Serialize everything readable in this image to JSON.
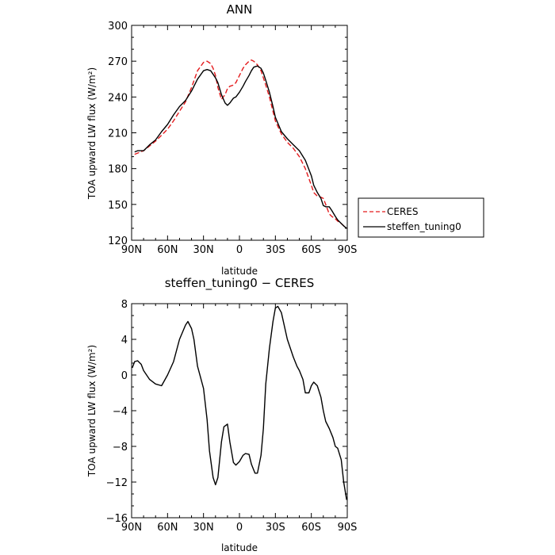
{
  "chart_data": [
    {
      "type": "line",
      "title": "ANN",
      "xlabel": "latitude",
      "ylabel": "TOA upward LW flux (W/m²)",
      "xticks": [
        "90N",
        "60N",
        "30N",
        "0",
        "30S",
        "60S",
        "90S"
      ],
      "xlim": [
        -90,
        90
      ],
      "ylim": [
        120,
        300
      ],
      "yticks": [
        120,
        150,
        180,
        210,
        240,
        270,
        300
      ],
      "legend": "right",
      "series": [
        {
          "name": "CERES",
          "color": "#e41a1c",
          "dash": "dashed",
          "x": [
            -87.5,
            -85,
            -80,
            -75,
            -70,
            -65,
            -60,
            -55,
            -50,
            -45,
            -40,
            -35,
            -30,
            -27,
            -24,
            -22,
            -20,
            -18,
            -15,
            -12,
            -10,
            -8,
            -5,
            -3,
            0,
            3,
            5,
            8,
            10,
            12,
            15,
            18,
            20,
            22,
            25,
            28,
            30,
            35,
            40,
            45,
            50,
            55,
            60,
            62,
            65,
            68,
            70,
            72,
            75,
            77,
            80,
            82,
            85,
            87,
            89.5
          ],
          "y": [
            192,
            193,
            195,
            199,
            203,
            208,
            213,
            220,
            228,
            236,
            248,
            262,
            269,
            270,
            268,
            264,
            258,
            248,
            238,
            242,
            247,
            249,
            250,
            252,
            258,
            264,
            267,
            270,
            271,
            270,
            267,
            262,
            256,
            250,
            240,
            228,
            220,
            209,
            202,
            197,
            190,
            180,
            166,
            160,
            157,
            156,
            155,
            150,
            142,
            140,
            138,
            136,
            134,
            132,
            130
          ]
        },
        {
          "name": "steffen_tuning0",
          "color": "#000000",
          "dash": "solid",
          "x": [
            -87.5,
            -85,
            -80,
            -75,
            -70,
            -65,
            -60,
            -55,
            -50,
            -45,
            -40,
            -35,
            -30,
            -27,
            -24,
            -22,
            -20,
            -18,
            -15,
            -12,
            -10,
            -8,
            -5,
            -3,
            0,
            3,
            5,
            8,
            10,
            12,
            15,
            18,
            20,
            22,
            25,
            28,
            30,
            35,
            40,
            45,
            50,
            55,
            60,
            62,
            65,
            68,
            70,
            72,
            75,
            77,
            80,
            82,
            85,
            87,
            89.5
          ],
          "y": [
            194,
            195,
            195,
            200,
            204,
            211,
            217,
            225,
            232,
            237,
            245,
            255,
            262,
            263,
            262,
            259,
            256,
            252,
            242,
            235,
            233,
            235,
            239,
            240,
            244,
            249,
            253,
            258,
            262,
            265,
            266,
            264,
            260,
            254,
            244,
            232,
            223,
            211,
            205,
            200,
            195,
            187,
            174,
            166,
            160,
            155,
            149,
            148,
            148,
            145,
            140,
            137,
            134,
            132,
            130
          ]
        }
      ]
    },
    {
      "type": "line",
      "title": "steffen_tuning0 − CERES",
      "xlabel": "latitude",
      "ylabel": "TOA upward LW flux (W/m²)",
      "xticks": [
        "90N",
        "60N",
        "30N",
        "0",
        "30S",
        "60S",
        "90S"
      ],
      "xlim": [
        -90,
        90
      ],
      "ylim": [
        -16,
        8
      ],
      "yticks": [
        -16,
        -12,
        -8,
        -4,
        0,
        4,
        8
      ],
      "series": [
        {
          "color": "#000000",
          "dash": "solid",
          "x": [
            -89.5,
            -87.5,
            -85,
            -82,
            -80,
            -75,
            -70,
            -65,
            -60,
            -55,
            -50,
            -45,
            -43,
            -40,
            -38,
            -35,
            -30,
            -27,
            -25,
            -22,
            -20,
            -18,
            -15,
            -13,
            -10,
            -8,
            -5,
            -3,
            0,
            3,
            5,
            8,
            10,
            13,
            15,
            18,
            20,
            22,
            25,
            28,
            30,
            32,
            35,
            40,
            45,
            48,
            50,
            53,
            55,
            58,
            60,
            62,
            65,
            68,
            70,
            72,
            75,
            78,
            80,
            82,
            85,
            87,
            89.5
          ],
          "y": [
            0.8,
            1.5,
            1.6,
            1.2,
            0.5,
            -0.5,
            -1,
            -1.2,
            0,
            1.5,
            4,
            5.6,
            6,
            5.2,
            4,
            1,
            -1.5,
            -5,
            -8.5,
            -11.5,
            -12.3,
            -11.5,
            -7.5,
            -5.8,
            -5.5,
            -7.5,
            -9.8,
            -10.1,
            -9.7,
            -9,
            -8.8,
            -8.9,
            -10,
            -11,
            -11,
            -9,
            -6,
            -1,
            3,
            6,
            7.5,
            7.7,
            7,
            4,
            2,
            1,
            0.5,
            -0.5,
            -2,
            -2,
            -1.2,
            -0.8,
            -1.2,
            -2.5,
            -4,
            -5.2,
            -6,
            -7,
            -8,
            -8.2,
            -9.5,
            -12,
            -14
          ]
        }
      ]
    }
  ]
}
